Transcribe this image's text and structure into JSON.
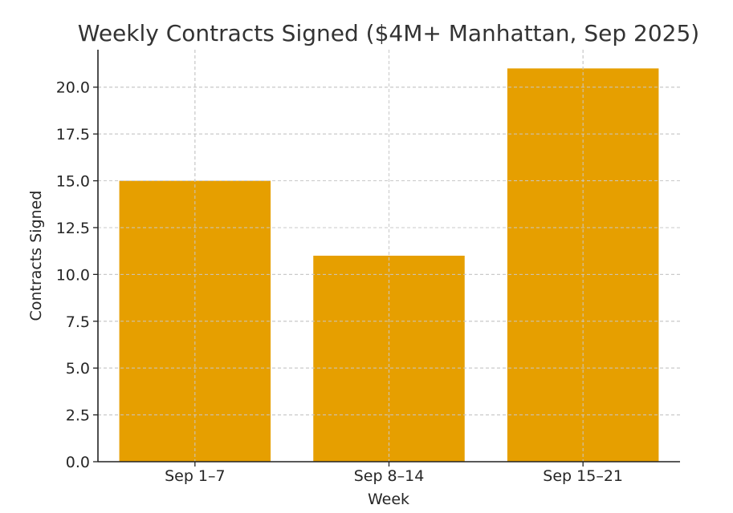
{
  "chart_data": {
    "type": "bar",
    "title": "Weekly Contracts Signed ($4M+ Manhattan, Sep 2025)",
    "xlabel": "Week",
    "ylabel": "Contracts Signed",
    "categories": [
      "Sep 1–7",
      "Sep 8–14",
      "Sep 15–21"
    ],
    "values": [
      15,
      11,
      21
    ],
    "ylim": [
      0,
      22
    ],
    "yticks": [
      0,
      2.5,
      5,
      7.5,
      10,
      12.5,
      15,
      17.5,
      20
    ],
    "ytick_labels": [
      "0.0",
      "2.5",
      "5.0",
      "7.5",
      "10.0",
      "12.5",
      "15.0",
      "17.5",
      "20.0"
    ],
    "grid": true,
    "bar_color": "#E69F00"
  }
}
